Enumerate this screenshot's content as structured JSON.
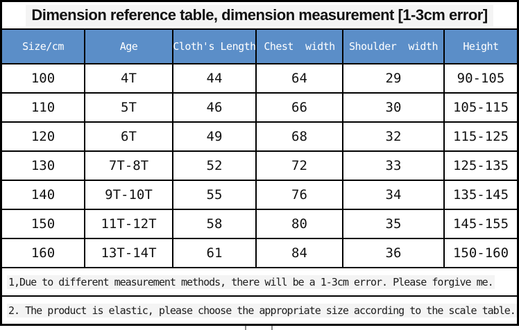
{
  "title": "Dimension reference table, dimension measurement [1-3cm error]",
  "table": {
    "headers": [
      "Size/cm",
      "Age",
      "Cloth's Length",
      "Chest  width",
      "Shoulder  width",
      "Height"
    ],
    "rows": [
      [
        "100",
        "4T",
        "44",
        "64",
        "29",
        "90-105"
      ],
      [
        "110",
        "5T",
        "46",
        "66",
        "30",
        "105-115"
      ],
      [
        "120",
        "6T",
        "49",
        "68",
        "32",
        "115-125"
      ],
      [
        "130",
        "7T-8T",
        "52",
        "72",
        "33",
        "125-135"
      ],
      [
        "140",
        "9T-10T",
        "55",
        "76",
        "34",
        "135-145"
      ],
      [
        "150",
        "11T-12T",
        "58",
        "80",
        "35",
        "145-155"
      ],
      [
        "160",
        "13T-14T",
        "61",
        "84",
        "36",
        "150-160"
      ]
    ]
  },
  "notes": [
    "1,Due to different measurement methods, there will be a 1-3cm error. Please forgive me.",
    "2. The product is elastic, please choose the appropriate size according to the scale table."
  ],
  "colors": {
    "header_bg": "#5b8ec8",
    "header_text": "#ffffff",
    "border": "#000000",
    "highlight_strip": "#f4f4f4"
  }
}
